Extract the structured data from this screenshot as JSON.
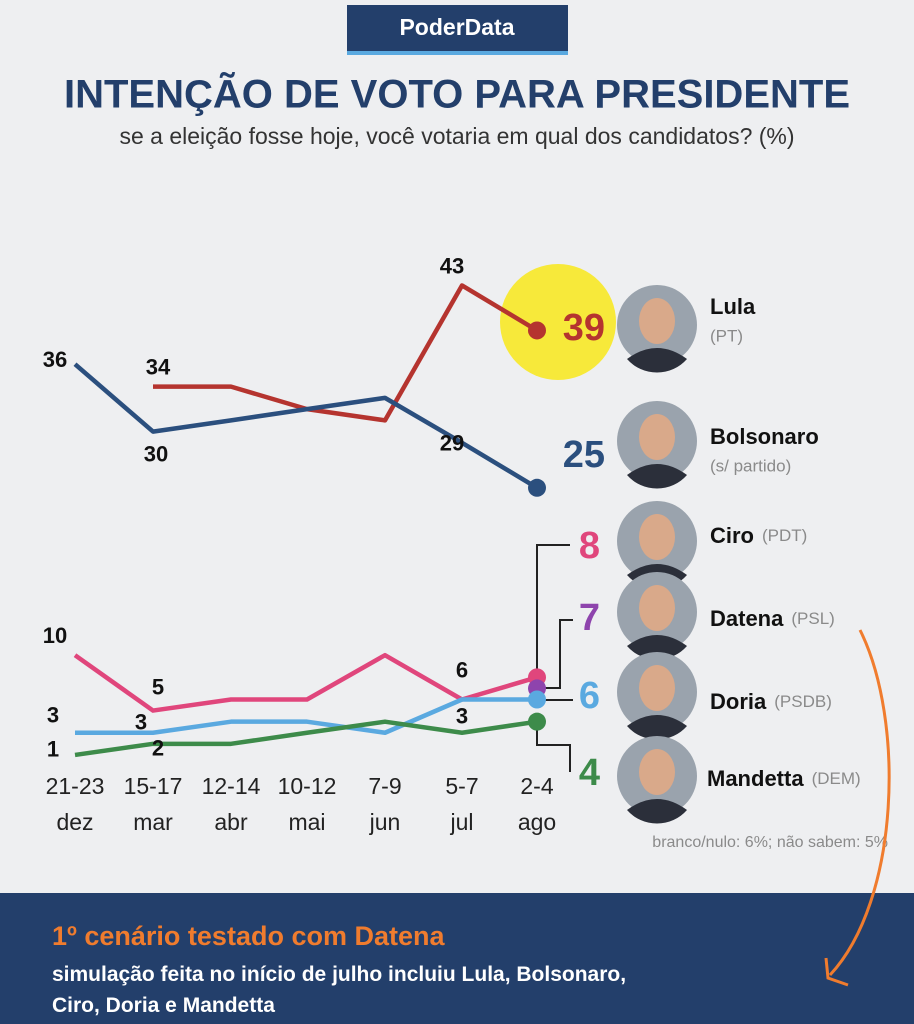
{
  "brand": "PoderData",
  "chart_data": {
    "type": "line",
    "title": "INTENÇÃO DE VOTO PARA PRESIDENTE",
    "subtitle": "se a eleição fosse hoje, você votaria em qual dos candidatos? (%)",
    "categories": [
      {
        "days": "21-23",
        "month": "dez"
      },
      {
        "days": "15-17",
        "month": "mar"
      },
      {
        "days": "12-14",
        "month": "abr"
      },
      {
        "days": "10-12",
        "month": "mai"
      },
      {
        "days": "7-9",
        "month": "jun"
      },
      {
        "days": "5-7",
        "month": "jul"
      },
      {
        "days": "2-4",
        "month": "ago"
      }
    ],
    "ylim": [
      20,
      45
    ],
    "y2lim": [
      0,
      12
    ],
    "highlight_color": "#f7e93a",
    "series": [
      {
        "name": "Lula",
        "party": "(PT)",
        "color": "#b5342f",
        "values": [
          null,
          34,
          34,
          32,
          31,
          43,
          39
        ]
      },
      {
        "name": "Bolsonaro",
        "party": "(s/ partido)",
        "color": "#2b4f7e",
        "values": [
          36,
          30,
          31,
          32,
          33,
          29,
          25
        ]
      },
      {
        "name": "Ciro",
        "party": "(PDT)",
        "color": "#e0467c",
        "axis": "y2",
        "values": [
          10,
          5,
          6,
          6,
          10,
          6,
          8
        ]
      },
      {
        "name": "Datena",
        "party": "(PSL)",
        "color": "#8e44ad",
        "axis": "y2",
        "values": [
          null,
          null,
          null,
          null,
          null,
          null,
          7
        ]
      },
      {
        "name": "Doria",
        "party": "(PSDB)",
        "color": "#5aa9e0",
        "axis": "y2",
        "values": [
          3,
          3,
          4,
          4,
          3,
          6,
          6
        ]
      },
      {
        "name": "Mandetta",
        "party": "(DEM)",
        "color": "#3d8b4a",
        "axis": "y2",
        "values": [
          1,
          2,
          2,
          3,
          4,
          3,
          4
        ]
      }
    ],
    "note": "branco/nulo: 6%; não sabem: 5%"
  },
  "footer": {
    "title": "1º cenário testado com Datena",
    "text": "simulação feita no início de julho incluiu Lula, Bolsonaro, Ciro, Doria e Mandetta"
  }
}
